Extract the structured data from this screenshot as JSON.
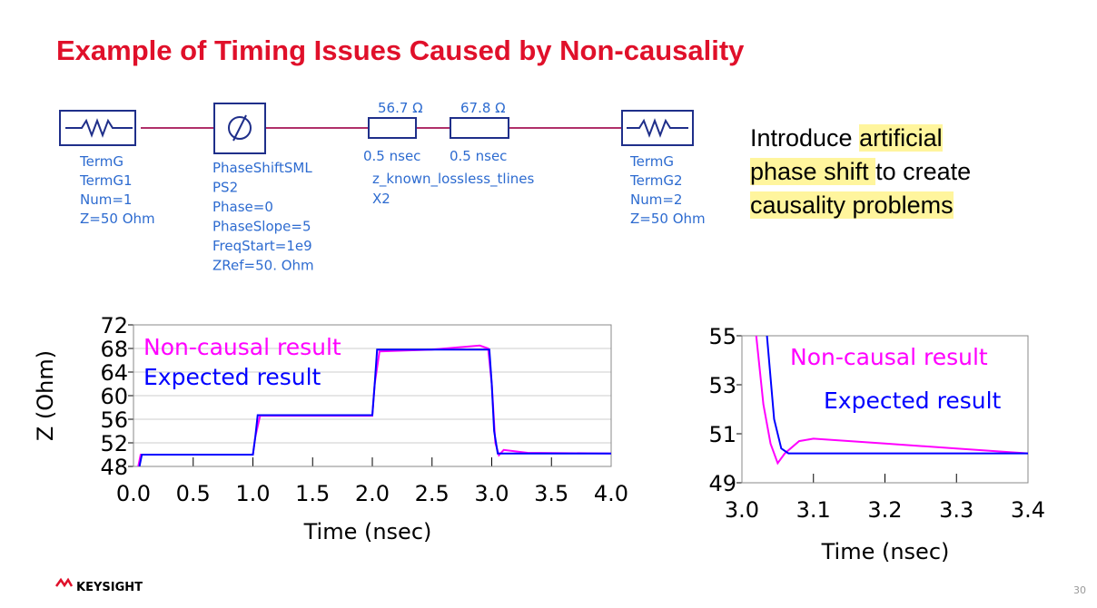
{
  "header": {
    "title": "Example of Timing Issues Caused by Non-causality"
  },
  "schematic": {
    "term1": [
      "TermG",
      "TermG1",
      "Num=1",
      "Z=50 Ohm"
    ],
    "phase_shift": [
      "PhaseShiftSML",
      "PS2",
      "Phase=0",
      "PhaseSlope=5",
      "FreqStart=1e9",
      "ZRef=50. Ohm"
    ],
    "tline1": {
      "impedance": "56.7 Ω",
      "delay": "0.5 nsec"
    },
    "tline2": {
      "impedance": "67.8 Ω",
      "delay": "0.5 nsec"
    },
    "tlines": [
      "z_known_lossless_tlines",
      "X2"
    ],
    "term2": [
      "TermG",
      "TermG2",
      "Num=2",
      "Z=50 Ohm"
    ]
  },
  "callout": [
    [
      {
        "text": "Introduce ",
        "highlight": false
      },
      {
        "text": "artificial",
        "highlight": true
      }
    ],
    [
      {
        "text": "phase shift ",
        "highlight": true
      },
      {
        "text": "to create",
        "highlight": false
      }
    ],
    [
      {
        "text": "causality problems",
        "highlight": true
      }
    ]
  ],
  "chart_data": [
    {
      "type": "line",
      "xlabel": "Time (nsec)",
      "ylabel": "Z (Ohm)",
      "xlim": [
        0,
        4
      ],
      "ylim": [
        48,
        72
      ],
      "grid": true,
      "xticks": [
        {
          "value": 0,
          "label": "0.0"
        },
        0.5,
        {
          "value": 1,
          "label": "1.0"
        },
        1.5,
        {
          "value": 2,
          "label": "2.0"
        },
        2.5,
        {
          "value": 3,
          "label": "3.0"
        },
        3.5,
        {
          "value": 4,
          "label": "4.0"
        }
      ],
      "yticks": [
        48,
        52,
        56,
        60,
        64,
        68,
        72
      ],
      "series": [
        {
          "name": "Non-causal result",
          "color": "#ff00ff",
          "x": [
            0.04,
            0.06,
            0.1,
            1.0,
            1.02,
            1.06,
            2.0,
            2.02,
            2.06,
            2.5,
            2.9,
            2.97,
            3.0,
            3.03,
            3.06,
            3.1,
            3.3,
            4.0
          ],
          "values": [
            48,
            50,
            50,
            50,
            53,
            56.6,
            56.6,
            62,
            67.5,
            67.8,
            68.5,
            68,
            62,
            52,
            49.9,
            50.8,
            50.3,
            50.2
          ]
        },
        {
          "name": "Expected result",
          "color": "#0000ff",
          "x": [
            0.05,
            0.07,
            1.0,
            1.02,
            1.04,
            2.0,
            2.02,
            2.04,
            2.98,
            3.0,
            3.02,
            3.05,
            4.0
          ],
          "values": [
            48,
            50,
            50,
            53,
            56.7,
            56.7,
            62,
            67.8,
            67.8,
            62,
            54,
            50.2,
            50.2
          ]
        }
      ]
    },
    {
      "type": "line",
      "xlabel": "Time (nsec)",
      "xlim": [
        3.0,
        3.4
      ],
      "ylim": [
        49,
        55
      ],
      "grid": false,
      "xticks": [
        {
          "value": 3.0,
          "label": "3.0"
        },
        3.1,
        3.2,
        3.3,
        3.4
      ],
      "yticks": [
        49,
        51,
        53,
        55
      ],
      "series": [
        {
          "name": "Non-causal result",
          "color": "#ff00ff",
          "x": [
            3.02,
            3.03,
            3.04,
            3.05,
            3.06,
            3.08,
            3.1,
            3.2,
            3.3,
            3.4
          ],
          "values": [
            55,
            52.2,
            50.6,
            49.8,
            50.2,
            50.7,
            50.8,
            50.6,
            50.4,
            50.2
          ]
        },
        {
          "name": "Expected result",
          "color": "#0000ff",
          "x": [
            3.035,
            3.045,
            3.055,
            3.065,
            3.4
          ],
          "values": [
            55,
            51.6,
            50.4,
            50.2,
            50.2
          ]
        }
      ]
    }
  ],
  "footer": {
    "logo": "KEYSIGHT",
    "page": "30"
  }
}
